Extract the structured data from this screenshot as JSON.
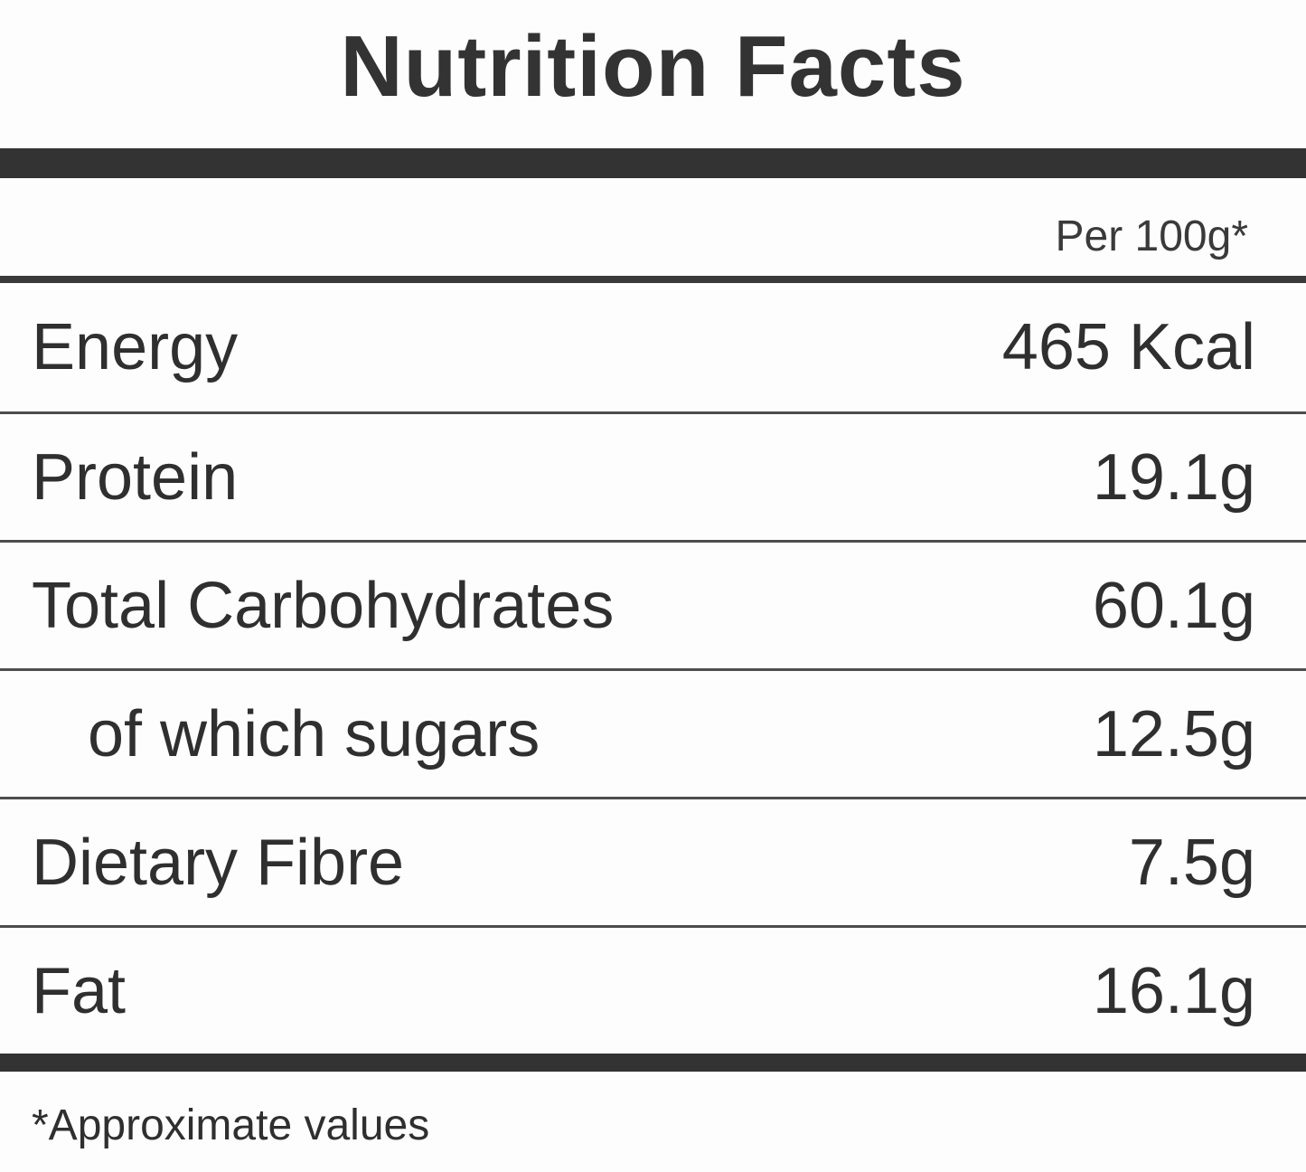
{
  "title": "Nutrition Facts",
  "table": {
    "column_header": "Per 100g*",
    "rows": [
      {
        "label": "Energy",
        "value": "465 Kcal"
      },
      {
        "label": "Protein",
        "value": "19.1g"
      },
      {
        "label": "Total Carbohydrates",
        "value": "60.1g"
      },
      {
        "label": "of which sugars",
        "value": "12.5g"
      },
      {
        "label": "Dietary Fibre",
        "value": "7.5g"
      },
      {
        "label": "Fat",
        "value": "16.1g"
      }
    ]
  },
  "footnote": "*Approximate values",
  "colors": {
    "text": "#333333",
    "bar": "#333333",
    "separator": "#4d4d4d",
    "background": "#fdfdfd"
  }
}
